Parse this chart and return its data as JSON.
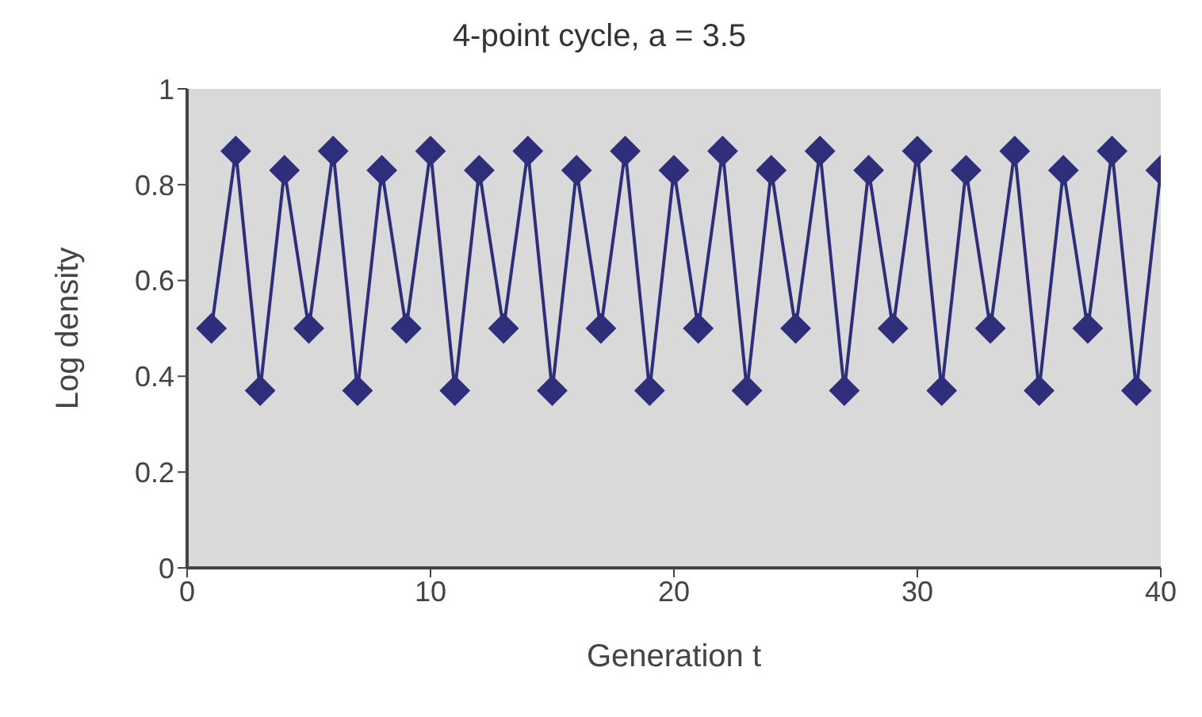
{
  "chart_data": {
    "type": "line",
    "title": "4-point cycle, a = 3.5",
    "xlabel": "Generation t",
    "ylabel": "Log density",
    "x": [
      1,
      2,
      3,
      4,
      5,
      6,
      7,
      8,
      9,
      10,
      11,
      12,
      13,
      14,
      15,
      16,
      17,
      18,
      19,
      20,
      21,
      22,
      23,
      24,
      25,
      26,
      27,
      28,
      29,
      30,
      31,
      32,
      33,
      34,
      35,
      36,
      37,
      38,
      39,
      40
    ],
    "series": [
      {
        "color": "#2e2e7a",
        "values": [
          0.5,
          0.87,
          0.37,
          0.83,
          0.5,
          0.87,
          0.37,
          0.83,
          0.5,
          0.87,
          0.37,
          0.83,
          0.5,
          0.87,
          0.37,
          0.83,
          0.5,
          0.87,
          0.37,
          0.83,
          0.5,
          0.87,
          0.37,
          0.83,
          0.5,
          0.87,
          0.37,
          0.83,
          0.5,
          0.87,
          0.37,
          0.83,
          0.5,
          0.87,
          0.37,
          0.83,
          0.5,
          0.87,
          0.37,
          0.83
        ]
      }
    ],
    "xlim": [
      0,
      40
    ],
    "xticks": [
      0,
      10,
      20,
      30,
      40
    ],
    "ylim": [
      0,
      1
    ],
    "yticks": [
      0,
      0.2,
      0.4,
      0.6,
      0.8,
      1
    ],
    "marker": "diamond",
    "line_style": "solid",
    "grid": false
  }
}
